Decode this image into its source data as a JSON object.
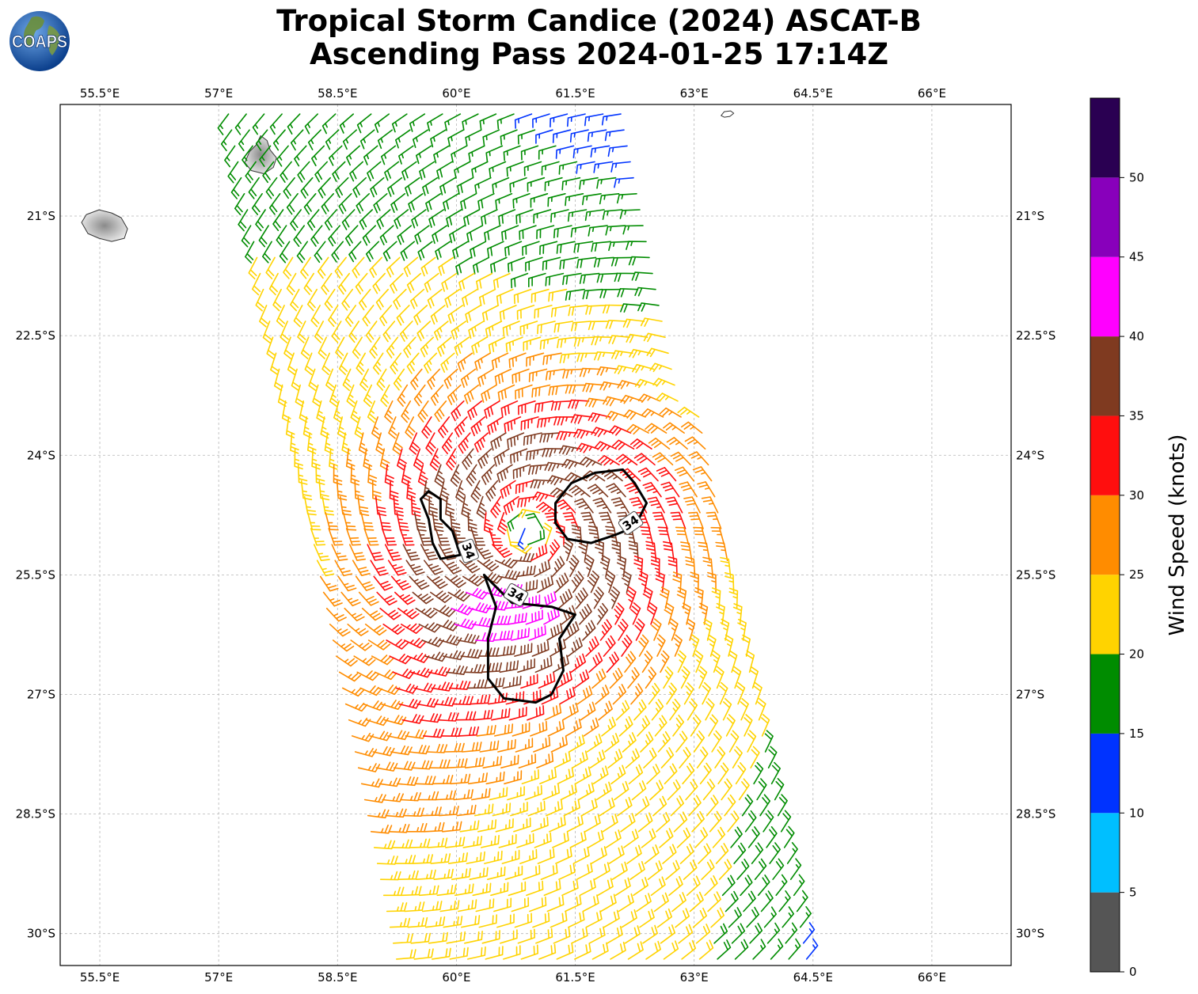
{
  "title": {
    "line1": "Tropical Storm Candice (2024) ASCAT-B",
    "line2": "Ascending Pass 2024-01-25 17:14Z"
  },
  "logo": {
    "text": "COAPS",
    "icon": "globe-logo-icon"
  },
  "map": {
    "lon_range": [
      55.0,
      67.0
    ],
    "lat_range": [
      -30.4,
      -19.6
    ],
    "lon_ticks": [
      "55.5°E",
      "57°E",
      "58.5°E",
      "60°E",
      "61.5°E",
      "63°E",
      "64.5°E",
      "66°E"
    ],
    "lon_tick_values": [
      55.5,
      57,
      58.5,
      60,
      61.5,
      63,
      64.5,
      66
    ],
    "lat_ticks": [
      "21°S",
      "22.5°S",
      "24°S",
      "25.5°S",
      "27°S",
      "28.5°S",
      "30°S"
    ],
    "lat_tick_values": [
      -21,
      -22.5,
      -24,
      -25.5,
      -27,
      -28.5,
      -30
    ],
    "grid": true,
    "storm_center": {
      "lon": 60.9,
      "lat": -24.95
    },
    "islands": [
      {
        "name": "Réunion",
        "lon": 55.55,
        "lat": -21.12
      },
      {
        "name": "Mauritius",
        "lon": 57.55,
        "lat": -20.25
      },
      {
        "name": "Rodrigues",
        "lon": 63.42,
        "lat": -19.72
      }
    ],
    "contour_label": "34",
    "contour_value_knots": 34
  },
  "colorbar": {
    "title": "Wind Speed (knots)",
    "tick_labels": [
      "0",
      "5",
      "10",
      "15",
      "20",
      "25",
      "30",
      "35",
      "40",
      "45",
      "50"
    ],
    "bounds": [
      0,
      5,
      10,
      15,
      20,
      25,
      30,
      35,
      40,
      45,
      50,
      55
    ],
    "colors": [
      "#555555",
      "#00bfff",
      "#0033ff",
      "#008c00",
      "#ffd300",
      "#ff8c00",
      "#ff0e0e",
      "#7f3a20",
      "#ff00ff",
      "#8800bb",
      "#2a0052"
    ]
  }
}
